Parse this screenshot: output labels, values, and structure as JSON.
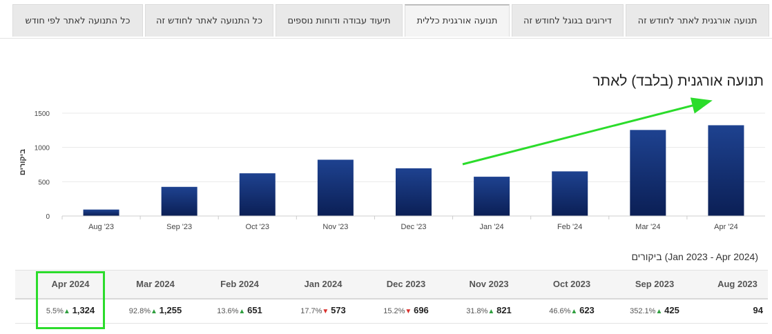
{
  "tabs": [
    {
      "label": "תנועה אורגנית לאתר לחודש זה"
    },
    {
      "label": "דירוגים בגוגל לחודש זה"
    },
    {
      "label": "תנועה אורגנית כללית",
      "active": true
    },
    {
      "label": "תיעוד עבודה ודוחות נוספים"
    },
    {
      "label": "כל התנועה לאתר לחודש זה"
    },
    {
      "label": "כל התנועה לאתר לפי חודש"
    }
  ],
  "chart_data": {
    "type": "bar",
    "title": "תנועה אורגנית (בלבד) לאתר",
    "ylabel": "ביקורים",
    "xlabel": "",
    "categories": [
      "Aug '23",
      "Sep '23",
      "Oct '23",
      "Nov '23",
      "Dec '23",
      "Jan '24",
      "Feb '24",
      "Mar '24",
      "Apr '24"
    ],
    "values": [
      94,
      425,
      623,
      821,
      696,
      573,
      651,
      1255,
      1324
    ],
    "yticks": [
      0,
      500,
      1000,
      1500
    ],
    "ylim": [
      0,
      1500
    ],
    "grid": true,
    "bar_color_top": "#1e4290",
    "bar_color_bottom": "#0b1f55",
    "annotation": "green upward trend arrow"
  },
  "table": {
    "caption": "ביקורים (Jan 2023 - Apr 2024)",
    "columns": [
      {
        "header": "Apr 2024",
        "pct": "5.5%",
        "dir": "up",
        "value": "1,324"
      },
      {
        "header": "Mar 2024",
        "pct": "92.8%",
        "dir": "up",
        "value": "1,255"
      },
      {
        "header": "Feb 2024",
        "pct": "13.6%",
        "dir": "up",
        "value": "651"
      },
      {
        "header": "Jan 2024",
        "pct": "17.7%",
        "dir": "down",
        "value": "573"
      },
      {
        "header": "Dec 2023",
        "pct": "15.2%",
        "dir": "down",
        "value": "696"
      },
      {
        "header": "Nov 2023",
        "pct": "31.8%",
        "dir": "up",
        "value": "821"
      },
      {
        "header": "Oct 2023",
        "pct": "46.6%",
        "dir": "up",
        "value": "623"
      },
      {
        "header": "Sep 2023",
        "pct": "352.1%",
        "dir": "up",
        "value": "425"
      },
      {
        "header": "Aug 2023",
        "pct": "",
        "dir": "",
        "value": "94"
      }
    ]
  },
  "colors": {
    "highlight": "#2bdc2b",
    "arrow": "#2bdc2b",
    "up": "#2e9e3e",
    "down": "#d9302c"
  }
}
